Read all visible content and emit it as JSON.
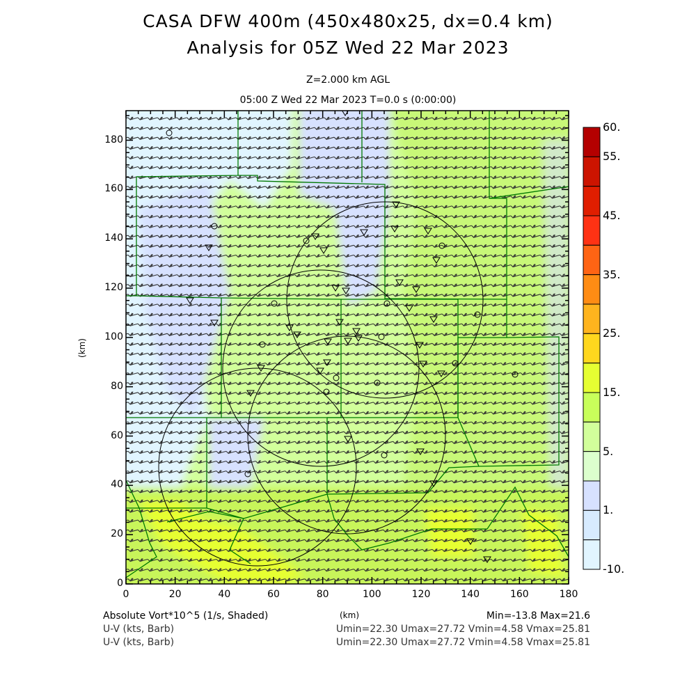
{
  "header": {
    "title_line1": "CASA DFW 400m (450x480x25, dx=0.4 km)",
    "title_line2": "Analysis for 05Z Wed 22 Mar 2023",
    "level": "Z=2.000 km AGL",
    "time": "05:00 Z Wed 22 Mar 2023    T=0.0 s (0:00:00)"
  },
  "axes": {
    "x_label": "(km)",
    "y_label": "(km)",
    "x_ticks": [
      "0",
      "20",
      "40",
      "60",
      "80",
      "100",
      "120",
      "140",
      "160",
      "180"
    ],
    "y_ticks": [
      "0",
      "20",
      "40",
      "60",
      "80",
      "100",
      "120",
      "140",
      "160",
      "180"
    ],
    "x_range": [
      0,
      180
    ],
    "y_range": [
      0,
      192
    ]
  },
  "colorbar": {
    "labels": [
      "60.",
      "55.",
      "45.",
      "35.",
      "25.",
      "15.",
      "5.",
      "1.",
      "-10."
    ],
    "colors": [
      "#b40000",
      "#cc1400",
      "#e01e00",
      "#ff3214",
      "#ff6414",
      "#ff8c14",
      "#ffb41e",
      "#ffd71e",
      "#e6ff32",
      "#c8ff5a",
      "#d2ff9b",
      "#dcffcd",
      "#d7e1ff",
      "#d7ebff",
      "#e1f5ff"
    ]
  },
  "footer": {
    "field1": "Absolute Vort*10^5 (1/s, Shaded)",
    "field1_stats": "Min=-13.8 Max=21.6",
    "field2": "U-V (kts, Barb)",
    "field2_stats": "Umin=22.30 Umax=27.72 Vmin=4.58 Vmax=25.81",
    "field3": "U-V (kts, Barb)",
    "field3_stats": "Umin=22.30 Umax=27.72 Vmin=4.58 Vmax=25.81"
  }
}
